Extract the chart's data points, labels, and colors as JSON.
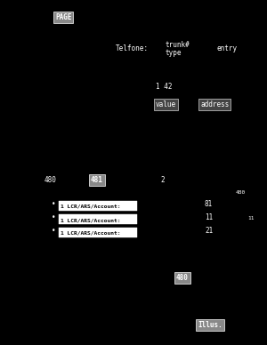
{
  "bg_color": "#000000",
  "text_color": "#ffffff",
  "page_label": "PAGE",
  "col1_label": "Telfone:",
  "col2_label": "trunk#",
  "col2b_label": "type",
  "col3_label": "entry",
  "sec2_label": "1 42",
  "sec2_col1": "value",
  "sec2_col2": "address",
  "mid_a": "480",
  "mid_b": "481",
  "mid_c": "2",
  "right_top": "480",
  "rows": [
    {
      "box_text": "1 LCR/ARS/Account:",
      "val": "81"
    },
    {
      "box_text": "1 LCR/ARS/Account:",
      "val": "11"
    },
    {
      "box_text": "1 LCR/ARS/Account:",
      "val": "21"
    }
  ],
  "far_right_val": "11",
  "bottom_note": "480",
  "footer_text": "Illus."
}
